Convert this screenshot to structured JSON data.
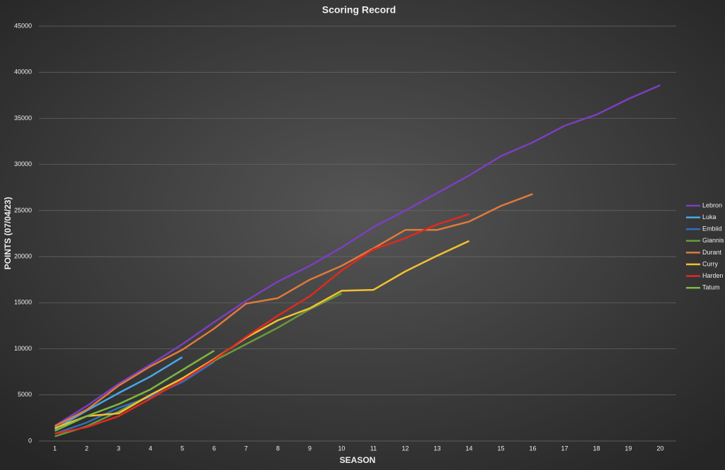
{
  "chart_data": {
    "type": "line",
    "title": "Scoring Record",
    "x_label": "SEASON",
    "y_label": "POINTS (07/04/23)",
    "categories": [
      "1",
      "2",
      "3",
      "4",
      "5",
      "6",
      "7",
      "8",
      "9",
      "10",
      "11",
      "12",
      "13",
      "14",
      "15",
      "16",
      "17",
      "18",
      "19",
      "20"
    ],
    "ylim": [
      0,
      45000
    ],
    "yticks": [
      0,
      5000,
      10000,
      15000,
      20000,
      25000,
      30000,
      35000,
      40000,
      45000
    ],
    "grid": true,
    "legend": "right",
    "series": [
      {
        "name": "Lebron",
        "color": "#7b3fc0",
        "values": [
          1650,
          3800,
          6200,
          8300,
          10500,
          12900,
          15200,
          17300,
          19000,
          21000,
          23200,
          25000,
          26900,
          28800,
          30900,
          32400,
          34200,
          35400,
          37100,
          38600
        ]
      },
      {
        "name": "Luka",
        "color": "#4aa8e8",
        "values": [
          1300,
          3300,
          5200,
          7000,
          9100,
          null,
          null,
          null,
          null,
          null,
          null,
          null,
          null,
          null,
          null,
          null,
          null,
          null,
          null,
          null
        ]
      },
      {
        "name": "Embiid",
        "color": "#2f6fc0",
        "values": [
          800,
          2000,
          3600,
          4800,
          6400,
          8600,
          null,
          null,
          null,
          null,
          null,
          null,
          null,
          null,
          null,
          null,
          null,
          null,
          null,
          null
        ]
      },
      {
        "name": "Giannis",
        "color": "#6a9a3a",
        "values": [
          500,
          1600,
          3200,
          5000,
          6800,
          8700,
          10500,
          12300,
          14300,
          16000,
          null,
          null,
          null,
          null,
          null,
          null,
          null,
          null,
          null,
          null
        ]
      },
      {
        "name": "Durant",
        "color": "#e07a3a",
        "values": [
          1600,
          3400,
          6000,
          8100,
          9900,
          12200,
          14900,
          15500,
          17500,
          19000,
          20900,
          22900,
          22900,
          23800,
          25500,
          26800,
          null,
          null,
          null,
          null
        ]
      },
      {
        "name": "Curry",
        "color": "#f2c030",
        "values": [
          1400,
          2700,
          3000,
          5000,
          6800,
          8900,
          11200,
          13100,
          14400,
          16300,
          16400,
          18400,
          20100,
          21700,
          null,
          null,
          null,
          null,
          null,
          null
        ]
      },
      {
        "name": "Harden",
        "color": "#e02a20",
        "values": [
          800,
          1500,
          2700,
          4600,
          6600,
          8800,
          11300,
          13600,
          15700,
          18500,
          20800,
          22000,
          23500,
          24600,
          null,
          null,
          null,
          null,
          null,
          null
        ]
      },
      {
        "name": "Tatum",
        "color": "#80b840",
        "values": [
          1100,
          2700,
          4000,
          5600,
          7700,
          9800,
          null,
          null,
          null,
          null,
          null,
          null,
          null,
          null,
          null,
          null,
          null,
          null,
          null,
          null
        ]
      }
    ]
  }
}
